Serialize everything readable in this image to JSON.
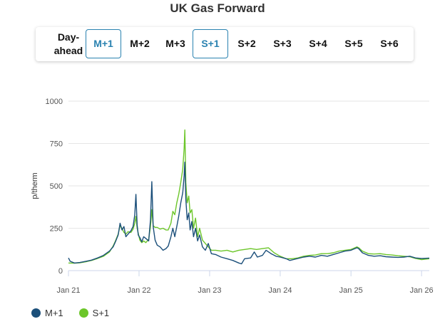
{
  "title": "UK Gas Forward",
  "tabs": [
    {
      "label": "Day-ahead",
      "active": false
    },
    {
      "label": "M+1",
      "active": true
    },
    {
      "label": "M+2",
      "active": false
    },
    {
      "label": "M+3",
      "active": false
    },
    {
      "label": "S+1",
      "active": true
    },
    {
      "label": "S+2",
      "active": false
    },
    {
      "label": "S+3",
      "active": false
    },
    {
      "label": "S+4",
      "active": false
    },
    {
      "label": "S+5",
      "active": false
    },
    {
      "label": "S+6",
      "active": false
    }
  ],
  "colors": {
    "m1": "#1b4f7a",
    "s1": "#6cc62a",
    "active_tab": "#2a82b0",
    "grid": "#e6e6e6"
  },
  "chart_data": {
    "type": "line",
    "title": "UK Gas Forward",
    "ylabel": "p/therm",
    "xlabel": "",
    "ylim": [
      0,
      1000
    ],
    "yticks": [
      "0",
      "250",
      "500",
      "750",
      "1000"
    ],
    "xlim": [
      "2021-01-01",
      "2026-02-10"
    ],
    "xticks": [
      {
        "date": "2021-01-01",
        "label": "Jan 21"
      },
      {
        "date": "2022-01-01",
        "label": "Jan 22"
      },
      {
        "date": "2023-01-01",
        "label": "Jan 23"
      },
      {
        "date": "2024-01-01",
        "label": "Jan 24"
      },
      {
        "date": "2025-01-01",
        "label": "Jan 25"
      },
      {
        "date": "2026-01-01",
        "label": "Jan 26"
      }
    ],
    "grid": true,
    "legend_position": "bottom-left",
    "series": [
      {
        "name": "M+1",
        "color": "#1b4f7a",
        "points": [
          [
            "2021-01-01",
            75
          ],
          [
            "2021-01-10",
            55
          ],
          [
            "2021-02-01",
            45
          ],
          [
            "2021-03-01",
            48
          ],
          [
            "2021-04-01",
            55
          ],
          [
            "2021-05-01",
            62
          ],
          [
            "2021-06-01",
            75
          ],
          [
            "2021-07-01",
            90
          ],
          [
            "2021-08-01",
            115
          ],
          [
            "2021-08-20",
            140
          ],
          [
            "2021-09-01",
            170
          ],
          [
            "2021-09-15",
            210
          ],
          [
            "2021-09-25",
            280
          ],
          [
            "2021-10-05",
            240
          ],
          [
            "2021-10-15",
            260
          ],
          [
            "2021-10-25",
            200
          ],
          [
            "2021-11-05",
            215
          ],
          [
            "2021-11-20",
            235
          ],
          [
            "2021-12-01",
            260
          ],
          [
            "2021-12-10",
            330
          ],
          [
            "2021-12-16",
            450
          ],
          [
            "2021-12-22",
            270
          ],
          [
            "2021-12-28",
            210
          ],
          [
            "2022-01-05",
            195
          ],
          [
            "2022-01-15",
            170
          ],
          [
            "2022-01-25",
            200
          ],
          [
            "2022-02-05",
            190
          ],
          [
            "2022-02-20",
            175
          ],
          [
            "2022-03-01",
            300
          ],
          [
            "2022-03-08",
            525
          ],
          [
            "2022-03-15",
            260
          ],
          [
            "2022-03-25",
            180
          ],
          [
            "2022-04-05",
            150
          ],
          [
            "2022-04-20",
            140
          ],
          [
            "2022-05-05",
            120
          ],
          [
            "2022-05-20",
            130
          ],
          [
            "2022-06-01",
            145
          ],
          [
            "2022-06-15",
            200
          ],
          [
            "2022-06-25",
            250
          ],
          [
            "2022-07-05",
            200
          ],
          [
            "2022-07-15",
            260
          ],
          [
            "2022-07-25",
            320
          ],
          [
            "2022-08-05",
            400
          ],
          [
            "2022-08-15",
            460
          ],
          [
            "2022-08-22",
            560
          ],
          [
            "2022-08-26",
            640
          ],
          [
            "2022-08-31",
            420
          ],
          [
            "2022-09-07",
            300
          ],
          [
            "2022-09-15",
            340
          ],
          [
            "2022-09-22",
            240
          ],
          [
            "2022-10-01",
            290
          ],
          [
            "2022-10-10",
            200
          ],
          [
            "2022-10-20",
            250
          ],
          [
            "2022-10-31",
            175
          ],
          [
            "2022-11-10",
            210
          ],
          [
            "2022-11-25",
            140
          ],
          [
            "2022-12-10",
            120
          ],
          [
            "2022-12-25",
            160
          ],
          [
            "2023-01-10",
            100
          ],
          [
            "2023-02-01",
            95
          ],
          [
            "2023-03-01",
            80
          ],
          [
            "2023-04-01",
            70
          ],
          [
            "2023-05-01",
            60
          ],
          [
            "2023-06-01",
            45
          ],
          [
            "2023-06-15",
            40
          ],
          [
            "2023-07-01",
            70
          ],
          [
            "2023-08-01",
            75
          ],
          [
            "2023-08-20",
            110
          ],
          [
            "2023-09-05",
            80
          ],
          [
            "2023-10-01",
            90
          ],
          [
            "2023-10-20",
            120
          ],
          [
            "2023-11-15",
            100
          ],
          [
            "2023-12-10",
            85
          ],
          [
            "2024-01-01",
            80
          ],
          [
            "2024-02-01",
            70
          ],
          [
            "2024-02-20",
            60
          ],
          [
            "2024-03-10",
            65
          ],
          [
            "2024-04-01",
            72
          ],
          [
            "2024-05-01",
            80
          ],
          [
            "2024-06-01",
            85
          ],
          [
            "2024-07-01",
            80
          ],
          [
            "2024-08-01",
            90
          ],
          [
            "2024-09-01",
            85
          ],
          [
            "2024-10-01",
            95
          ],
          [
            "2024-11-01",
            105
          ],
          [
            "2024-12-01",
            115
          ],
          [
            "2025-01-01",
            120
          ],
          [
            "2025-02-01",
            135
          ],
          [
            "2025-02-10",
            130
          ],
          [
            "2025-03-01",
            105
          ],
          [
            "2025-04-01",
            90
          ],
          [
            "2025-05-01",
            85
          ],
          [
            "2025-06-01",
            88
          ],
          [
            "2025-07-01",
            82
          ],
          [
            "2025-08-01",
            80
          ],
          [
            "2025-09-01",
            78
          ],
          [
            "2025-10-01",
            80
          ],
          [
            "2025-11-01",
            85
          ],
          [
            "2025-12-01",
            75
          ],
          [
            "2026-01-01",
            72
          ],
          [
            "2026-02-10",
            74
          ]
        ]
      },
      {
        "name": "S+1",
        "color": "#6cc62a",
        "points": [
          [
            "2021-01-01",
            45
          ],
          [
            "2021-02-01",
            44
          ],
          [
            "2021-03-01",
            46
          ],
          [
            "2021-04-01",
            52
          ],
          [
            "2021-05-01",
            60
          ],
          [
            "2021-06-01",
            72
          ],
          [
            "2021-07-01",
            85
          ],
          [
            "2021-08-01",
            110
          ],
          [
            "2021-08-20",
            145
          ],
          [
            "2021-09-01",
            175
          ],
          [
            "2021-09-15",
            215
          ],
          [
            "2021-09-25",
            265
          ],
          [
            "2021-10-05",
            250
          ],
          [
            "2021-10-15",
            225
          ],
          [
            "2021-10-25",
            215
          ],
          [
            "2021-11-05",
            230
          ],
          [
            "2021-11-20",
            225
          ],
          [
            "2021-12-01",
            245
          ],
          [
            "2021-12-10",
            280
          ],
          [
            "2021-12-16",
            320
          ],
          [
            "2021-12-22",
            250
          ],
          [
            "2021-12-28",
            220
          ],
          [
            "2022-01-05",
            180
          ],
          [
            "2022-01-15",
            165
          ],
          [
            "2022-01-25",
            175
          ],
          [
            "2022-02-05",
            165
          ],
          [
            "2022-02-20",
            185
          ],
          [
            "2022-03-01",
            260
          ],
          [
            "2022-03-08",
            360
          ],
          [
            "2022-03-15",
            265
          ],
          [
            "2022-03-25",
            255
          ],
          [
            "2022-04-05",
            255
          ],
          [
            "2022-04-20",
            245
          ],
          [
            "2022-05-05",
            250
          ],
          [
            "2022-05-20",
            240
          ],
          [
            "2022-06-01",
            240
          ],
          [
            "2022-06-15",
            280
          ],
          [
            "2022-06-25",
            350
          ],
          [
            "2022-07-05",
            330
          ],
          [
            "2022-07-15",
            400
          ],
          [
            "2022-07-25",
            450
          ],
          [
            "2022-08-05",
            520
          ],
          [
            "2022-08-15",
            600
          ],
          [
            "2022-08-22",
            720
          ],
          [
            "2022-08-26",
            830
          ],
          [
            "2022-08-31",
            520
          ],
          [
            "2022-09-07",
            400
          ],
          [
            "2022-09-15",
            440
          ],
          [
            "2022-09-22",
            340
          ],
          [
            "2022-10-01",
            360
          ],
          [
            "2022-10-10",
            250
          ],
          [
            "2022-10-20",
            310
          ],
          [
            "2022-10-31",
            200
          ],
          [
            "2022-11-10",
            250
          ],
          [
            "2022-11-25",
            180
          ],
          [
            "2022-12-10",
            160
          ],
          [
            "2022-12-25",
            140
          ],
          [
            "2023-01-10",
            120
          ],
          [
            "2023-02-01",
            120
          ],
          [
            "2023-03-01",
            115
          ],
          [
            "2023-04-01",
            120
          ],
          [
            "2023-05-01",
            110
          ],
          [
            "2023-06-01",
            120
          ],
          [
            "2023-07-01",
            125
          ],
          [
            "2023-08-01",
            130
          ],
          [
            "2023-09-01",
            125
          ],
          [
            "2023-10-01",
            130
          ],
          [
            "2023-11-01",
            135
          ],
          [
            "2023-12-01",
            105
          ],
          [
            "2024-01-01",
            85
          ],
          [
            "2024-02-01",
            70
          ],
          [
            "2024-03-01",
            70
          ],
          [
            "2024-04-01",
            75
          ],
          [
            "2024-05-01",
            85
          ],
          [
            "2024-06-01",
            90
          ],
          [
            "2024-07-01",
            92
          ],
          [
            "2024-08-01",
            100
          ],
          [
            "2024-09-01",
            100
          ],
          [
            "2024-10-01",
            105
          ],
          [
            "2024-11-01",
            115
          ],
          [
            "2024-12-01",
            120
          ],
          [
            "2025-01-01",
            125
          ],
          [
            "2025-02-01",
            140
          ],
          [
            "2025-02-10",
            135
          ],
          [
            "2025-03-01",
            115
          ],
          [
            "2025-04-01",
            100
          ],
          [
            "2025-05-01",
            98
          ],
          [
            "2025-06-01",
            100
          ],
          [
            "2025-07-01",
            95
          ],
          [
            "2025-08-01",
            92
          ],
          [
            "2025-09-01",
            88
          ],
          [
            "2025-10-01",
            85
          ],
          [
            "2025-11-01",
            82
          ],
          [
            "2025-12-01",
            72
          ],
          [
            "2026-01-01",
            65
          ],
          [
            "2026-02-10",
            70
          ]
        ]
      }
    ]
  }
}
